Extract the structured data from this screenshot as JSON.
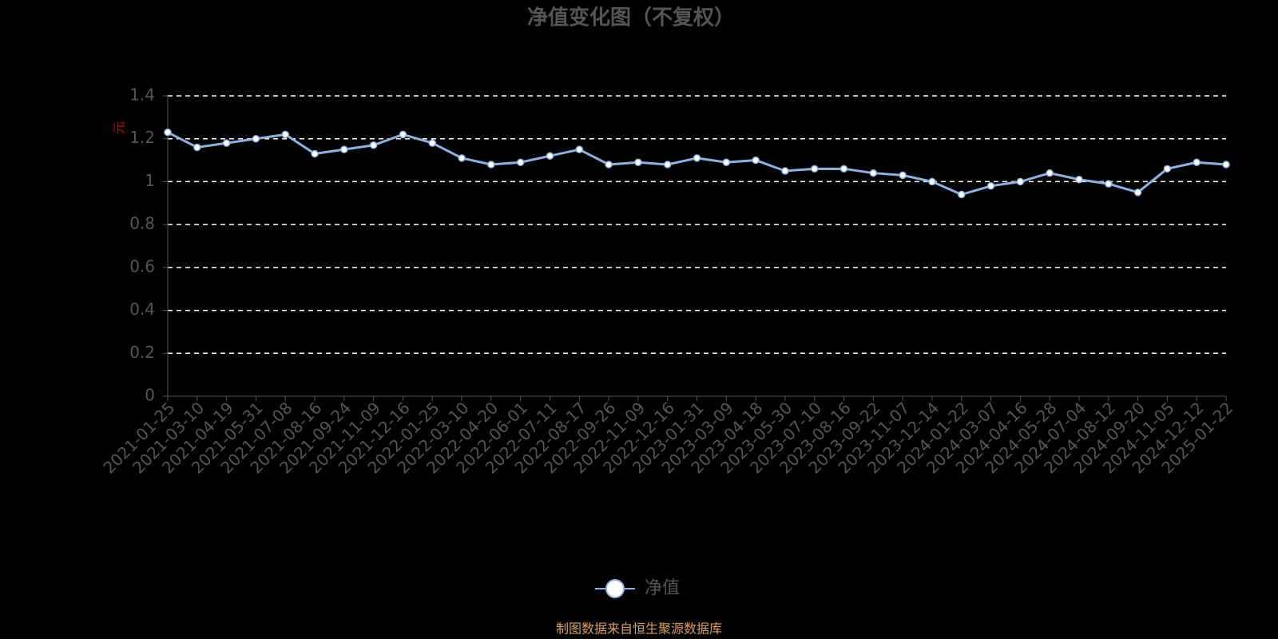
{
  "chart_data": {
    "type": "line",
    "title": "净值变化图（不复权）",
    "y_label": "元",
    "categories": [
      "2021-01-25",
      "2021-03-10",
      "2021-04-19",
      "2021-05-31",
      "2021-07-08",
      "2021-08-16",
      "2021-09-24",
      "2021-11-09",
      "2021-12-16",
      "2022-01-25",
      "2022-03-10",
      "2022-04-20",
      "2022-06-01",
      "2022-07-11",
      "2022-08-17",
      "2022-09-26",
      "2022-11-09",
      "2022-12-16",
      "2023-01-31",
      "2023-03-09",
      "2023-04-18",
      "2023-05-30",
      "2023-07-10",
      "2023-08-16",
      "2023-09-22",
      "2023-11-07",
      "2023-12-14",
      "2024-01-22",
      "2024-03-07",
      "2024-04-16",
      "2024-05-28",
      "2024-07-04",
      "2024-08-12",
      "2024-09-20",
      "2024-11-05",
      "2024-12-12",
      "2025-01-22"
    ],
    "series": [
      {
        "name": "净值",
        "color": "#8fb0e0",
        "values": [
          1.23,
          1.16,
          1.18,
          1.2,
          1.22,
          1.13,
          1.15,
          1.17,
          1.22,
          1.18,
          1.11,
          1.08,
          1.09,
          1.12,
          1.15,
          1.08,
          1.09,
          1.08,
          1.11,
          1.09,
          1.1,
          1.05,
          1.06,
          1.06,
          1.04,
          1.03,
          1.0,
          0.94,
          0.98,
          1.0,
          1.04,
          1.01,
          0.99,
          0.95,
          1.06,
          1.09,
          1.08
        ]
      }
    ],
    "ylim": [
      0,
      1.4
    ],
    "yticks": [
      0,
      0.2,
      0.4,
      0.6,
      0.8,
      1,
      1.2,
      1.4
    ],
    "grid": true,
    "source": "制图数据来自恒生聚源数据库"
  }
}
